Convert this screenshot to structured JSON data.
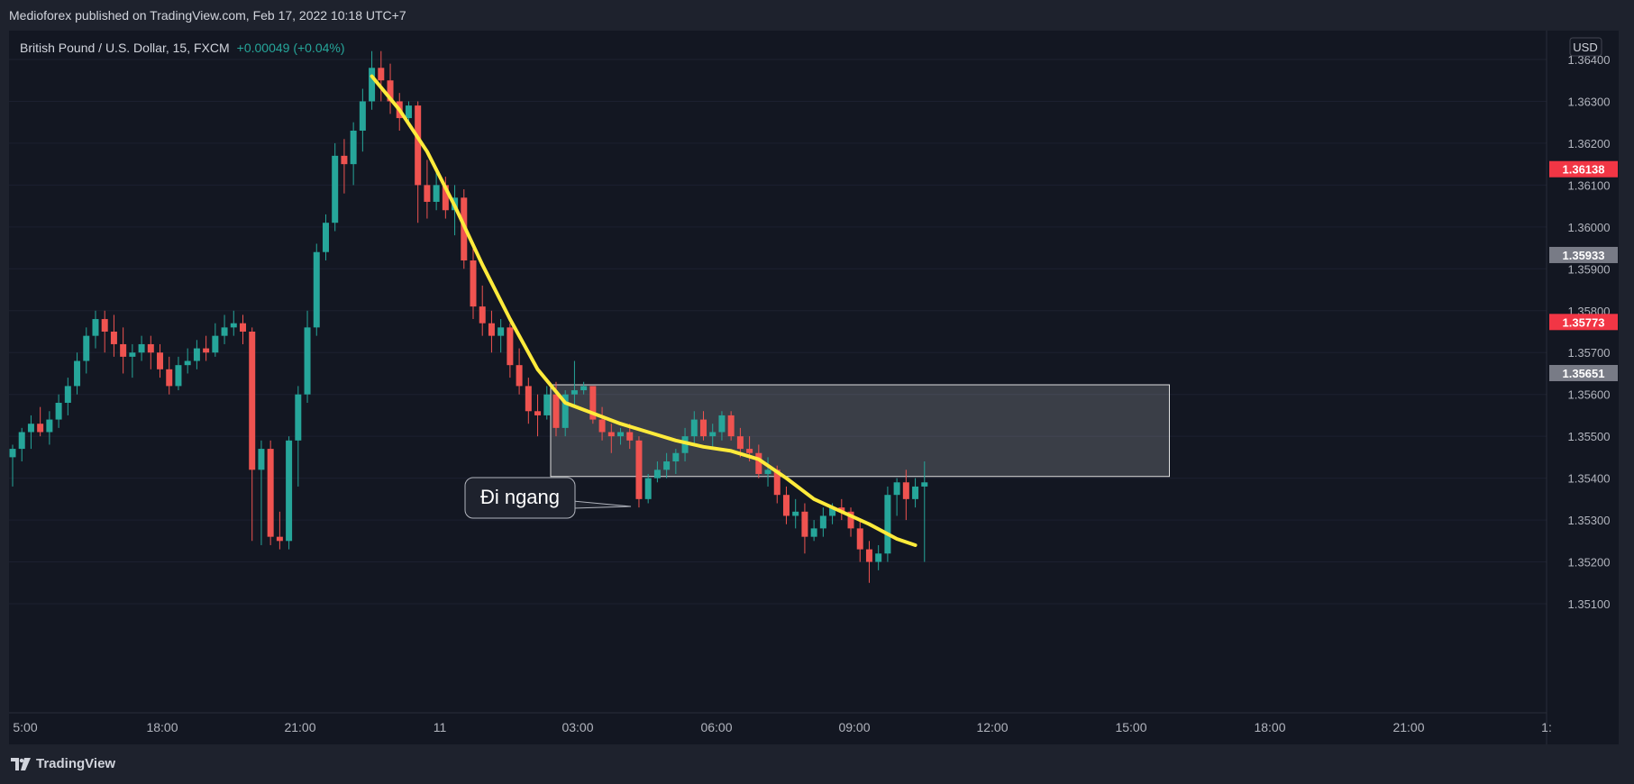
{
  "publish_line": "Medioforex published on TradingView.com, Feb 17, 2022 10:18 UTC+7",
  "symbol_line": {
    "symbol": "British Pound / U.S. Dollar, 15, FXCM",
    "change": "+0.00049 (+0.04%)"
  },
  "currency_label": "USD",
  "brand": "TradingView",
  "annotation": "Đi ngang",
  "colors": {
    "up": "#26a69a",
    "down": "#ef5350",
    "ma": "#ffeb3b",
    "background": "#131722"
  },
  "chart_data": {
    "type": "candlestick",
    "y_ticks": [
      "1.36400",
      "1.36300",
      "1.36200",
      "1.36100",
      "1.36000",
      "1.35900",
      "1.35800",
      "1.35700",
      "1.35600",
      "1.35500",
      "1.35400",
      "1.35300",
      "1.35200",
      "1.35100"
    ],
    "x_ticks": [
      "5:00",
      "18:00",
      "21:00",
      "11",
      "03:00",
      "06:00",
      "09:00",
      "12:00",
      "15:00",
      "18:00",
      "21:00",
      "1:"
    ],
    "ylim": [
      1.3508,
      1.3646
    ],
    "price_labels": [
      {
        "value": "1.36138",
        "color": "#f23645"
      },
      {
        "value": "1.35933",
        "color": "#787b86"
      },
      {
        "value": "1.35773",
        "color": "#f23645"
      },
      {
        "value": "1.35651",
        "color": "#787b86"
      }
    ],
    "range_box": {
      "y_top": 1.35623,
      "y_bottom": 1.35404,
      "x_start_index": 59,
      "x_end_index": 125
    },
    "candles": [
      [
        1.3545,
        1.3548,
        1.3538,
        1.3547
      ],
      [
        1.3547,
        1.3552,
        1.3544,
        1.3551
      ],
      [
        1.3551,
        1.3555,
        1.3547,
        1.3553
      ],
      [
        1.3553,
        1.3557,
        1.355,
        1.3551
      ],
      [
        1.3551,
        1.3556,
        1.3548,
        1.3554
      ],
      [
        1.3554,
        1.356,
        1.3552,
        1.3558
      ],
      [
        1.3558,
        1.3564,
        1.3555,
        1.3562
      ],
      [
        1.3562,
        1.357,
        1.356,
        1.3568
      ],
      [
        1.3568,
        1.3576,
        1.3565,
        1.3574
      ],
      [
        1.3574,
        1.358,
        1.3571,
        1.3578
      ],
      [
        1.3578,
        1.358,
        1.357,
        1.3575
      ],
      [
        1.3575,
        1.3579,
        1.3569,
        1.3572
      ],
      [
        1.3572,
        1.3576,
        1.3565,
        1.3569
      ],
      [
        1.3569,
        1.3572,
        1.3564,
        1.357
      ],
      [
        1.357,
        1.3574,
        1.3568,
        1.3572
      ],
      [
        1.3572,
        1.3574,
        1.3566,
        1.357
      ],
      [
        1.357,
        1.3572,
        1.3564,
        1.3566
      ],
      [
        1.3566,
        1.3569,
        1.356,
        1.3562
      ],
      [
        1.3562,
        1.3569,
        1.3561,
        1.3567
      ],
      [
        1.3567,
        1.3571,
        1.3565,
        1.3568
      ],
      [
        1.3568,
        1.3573,
        1.3566,
        1.3571
      ],
      [
        1.3571,
        1.3574,
        1.3568,
        1.357
      ],
      [
        1.357,
        1.3577,
        1.3569,
        1.3574
      ],
      [
        1.3574,
        1.3579,
        1.3572,
        1.3576
      ],
      [
        1.3576,
        1.358,
        1.3574,
        1.3577
      ],
      [
        1.3577,
        1.3579,
        1.3572,
        1.3575
      ],
      [
        1.3575,
        1.3576,
        1.3525,
        1.3542
      ],
      [
        1.3542,
        1.3549,
        1.3524,
        1.3547
      ],
      [
        1.3547,
        1.3549,
        1.3524,
        1.3526
      ],
      [
        1.3526,
        1.3532,
        1.3523,
        1.3525
      ],
      [
        1.3525,
        1.355,
        1.3523,
        1.3549
      ],
      [
        1.3549,
        1.3562,
        1.3538,
        1.356
      ],
      [
        1.356,
        1.358,
        1.3558,
        1.3576
      ],
      [
        1.3576,
        1.3596,
        1.3574,
        1.3594
      ],
      [
        1.3594,
        1.3603,
        1.3592,
        1.3601
      ],
      [
        1.3601,
        1.362,
        1.3599,
        1.3617
      ],
      [
        1.3617,
        1.3621,
        1.3608,
        1.3615
      ],
      [
        1.3615,
        1.3625,
        1.361,
        1.3623
      ],
      [
        1.3623,
        1.3633,
        1.3618,
        1.363
      ],
      [
        1.363,
        1.3642,
        1.3628,
        1.3638
      ],
      [
        1.3638,
        1.3642,
        1.363,
        1.3635
      ],
      [
        1.3635,
        1.3639,
        1.3627,
        1.363
      ],
      [
        1.363,
        1.3632,
        1.3623,
        1.3626
      ],
      [
        1.3626,
        1.363,
        1.3624,
        1.3629
      ],
      [
        1.3629,
        1.363,
        1.3601,
        1.361
      ],
      [
        1.361,
        1.3616,
        1.3602,
        1.3606
      ],
      [
        1.3606,
        1.3613,
        1.3604,
        1.361
      ],
      [
        1.361,
        1.3612,
        1.3602,
        1.3604
      ],
      [
        1.3604,
        1.361,
        1.3598,
        1.3607
      ],
      [
        1.3607,
        1.3609,
        1.359,
        1.3592
      ],
      [
        1.3592,
        1.3596,
        1.3578,
        1.3581
      ],
      [
        1.3581,
        1.3586,
        1.3574,
        1.3577
      ],
      [
        1.3577,
        1.358,
        1.357,
        1.3574
      ],
      [
        1.3574,
        1.3578,
        1.357,
        1.3576
      ],
      [
        1.3576,
        1.3577,
        1.3564,
        1.3567
      ],
      [
        1.3567,
        1.3571,
        1.356,
        1.3562
      ],
      [
        1.3562,
        1.3564,
        1.3553,
        1.3556
      ],
      [
        1.3556,
        1.356,
        1.355,
        1.3555
      ],
      [
        1.3555,
        1.3562,
        1.3554,
        1.356
      ],
      [
        1.356,
        1.3563,
        1.355,
        1.3552
      ],
      [
        1.3552,
        1.3561,
        1.355,
        1.356
      ],
      [
        1.356,
        1.3568,
        1.3557,
        1.3561
      ],
      [
        1.3561,
        1.3563,
        1.356,
        1.3562
      ],
      [
        1.3562,
        1.3561,
        1.3553,
        1.3554
      ],
      [
        1.3554,
        1.3557,
        1.3549,
        1.3551
      ],
      [
        1.3551,
        1.3553,
        1.3546,
        1.355
      ],
      [
        1.355,
        1.3552,
        1.3548,
        1.3551
      ],
      [
        1.3551,
        1.3553,
        1.3547,
        1.3549
      ],
      [
        1.3549,
        1.355,
        1.3533,
        1.3535
      ],
      [
        1.3535,
        1.3541,
        1.3534,
        1.354
      ],
      [
        1.354,
        1.3544,
        1.3539,
        1.3542
      ],
      [
        1.3542,
        1.3546,
        1.354,
        1.3544
      ],
      [
        1.3544,
        1.3547,
        1.3541,
        1.3546
      ],
      [
        1.3546,
        1.3552,
        1.3544,
        1.355
      ],
      [
        1.355,
        1.3556,
        1.3548,
        1.3554
      ],
      [
        1.3554,
        1.3556,
        1.3549,
        1.355
      ],
      [
        1.355,
        1.3553,
        1.3547,
        1.3551
      ],
      [
        1.3551,
        1.3556,
        1.3549,
        1.3555
      ],
      [
        1.3555,
        1.3556,
        1.3549,
        1.355
      ],
      [
        1.355,
        1.3552,
        1.3545,
        1.3547
      ],
      [
        1.3547,
        1.355,
        1.3544,
        1.3546
      ],
      [
        1.3546,
        1.3548,
        1.354,
        1.3541
      ],
      [
        1.3541,
        1.3545,
        1.3538,
        1.3542
      ],
      [
        1.3542,
        1.3543,
        1.3534,
        1.3536
      ],
      [
        1.3536,
        1.3538,
        1.3529,
        1.3531
      ],
      [
        1.3531,
        1.3535,
        1.3528,
        1.3532
      ],
      [
        1.3532,
        1.3534,
        1.3522,
        1.3526
      ],
      [
        1.3526,
        1.353,
        1.3525,
        1.3528
      ],
      [
        1.3528,
        1.3533,
        1.3526,
        1.3531
      ],
      [
        1.3531,
        1.3534,
        1.3529,
        1.3533
      ],
      [
        1.3533,
        1.3535,
        1.353,
        1.3532
      ],
      [
        1.3532,
        1.3533,
        1.3526,
        1.3528
      ],
      [
        1.3528,
        1.353,
        1.352,
        1.3523
      ],
      [
        1.3523,
        1.3525,
        1.3515,
        1.352
      ],
      [
        1.352,
        1.3524,
        1.3518,
        1.3522
      ],
      [
        1.3522,
        1.3538,
        1.352,
        1.3536
      ],
      [
        1.3536,
        1.354,
        1.3531,
        1.3539
      ],
      [
        1.3539,
        1.3542,
        1.353,
        1.3535
      ],
      [
        1.3535,
        1.354,
        1.3533,
        1.3538
      ],
      [
        1.3538,
        1.3544,
        1.352,
        1.3539
      ]
    ],
    "ma_line": [
      [
        39,
        1.3636
      ],
      [
        42,
        1.3628
      ],
      [
        45,
        1.3618
      ],
      [
        48,
        1.3605
      ],
      [
        51,
        1.3591
      ],
      [
        54,
        1.3578
      ],
      [
        57,
        1.3566
      ],
      [
        60,
        1.3558
      ],
      [
        63,
        1.35555
      ],
      [
        66,
        1.3553
      ],
      [
        69,
        1.3551
      ],
      [
        72,
        1.3549
      ],
      [
        75,
        1.35475
      ],
      [
        78,
        1.35465
      ],
      [
        81,
        1.35445
      ],
      [
        84,
        1.354
      ],
      [
        87,
        1.3535
      ],
      [
        90,
        1.3532
      ],
      [
        93,
        1.3529
      ],
      [
        96,
        1.35255
      ],
      [
        98,
        1.3524
      ]
    ]
  }
}
